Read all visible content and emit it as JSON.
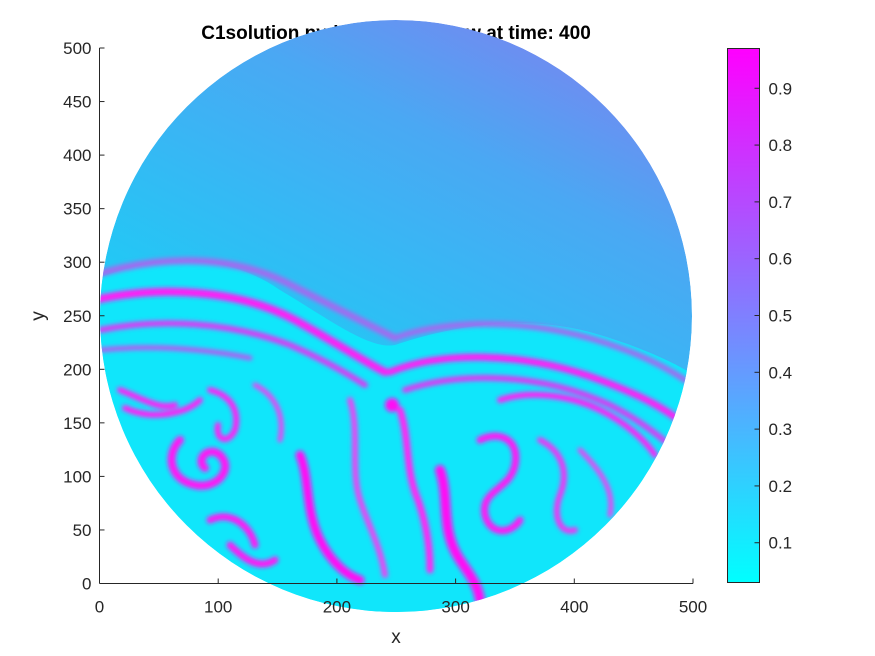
{
  "chart_data": {
    "type": "heatmap",
    "title": "C1solution.pvd, Component: w at time: 400",
    "xlabel": "x",
    "ylabel": "y",
    "xlim": [
      0,
      500
    ],
    "ylim": [
      0,
      500
    ],
    "xticks": [
      0,
      100,
      200,
      300,
      400,
      500
    ],
    "yticks": [
      0,
      50,
      100,
      150,
      200,
      250,
      300,
      350,
      400,
      450,
      500
    ],
    "domain": {
      "shape": "circle",
      "center": [
        250,
        250
      ],
      "radius": 250
    },
    "colorbar": {
      "range": [
        0.03,
        0.97
      ],
      "ticks": [
        0.1,
        0.2,
        0.3,
        0.4,
        0.5,
        0.6,
        0.7,
        0.8,
        0.9
      ],
      "colormap": "cool",
      "color_low": "#00ffff",
      "color_high": "#ff00ff"
    }
  }
}
